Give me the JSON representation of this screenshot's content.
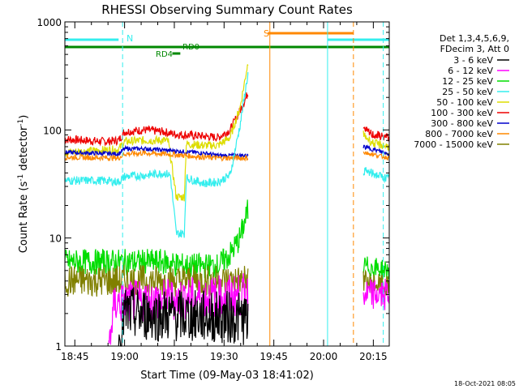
{
  "chart_data": {
    "type": "line",
    "title": "RHESSI Observing Summary Count Rates",
    "xlabel": "Start Time (09-May-03 18:41:02)",
    "ylabel_main": "Count Rate (s",
    "ylabel_sup1": "-1",
    "ylabel_mid": " detector",
    "ylabel_sup2": "-1",
    "ylabel_end": ")",
    "yscale": "log",
    "ylim": [
      1,
      1000
    ],
    "xlim_minutes": [
      18.7,
      20.33
    ],
    "x_ticks": [
      "18:45",
      "19:00",
      "19:15",
      "19:30",
      "19:45",
      "20:00",
      "20:15"
    ],
    "y_ticks": [
      "1",
      "10",
      "100",
      "1000"
    ],
    "legend": {
      "header1": "Det 1,3,4,5,6,9,",
      "header2": "FDecim 3, Att 0",
      "items": [
        {
          "label": "3 - 6 keV",
          "color": "#000000"
        },
        {
          "label": "6 - 12 keV",
          "color": "#ff00ff"
        },
        {
          "label": "12 - 25 keV",
          "color": "#00dd00"
        },
        {
          "label": "25 - 50 keV",
          "color": "#33eeee"
        },
        {
          "label": "50 - 100 keV",
          "color": "#dddd00"
        },
        {
          "label": "100 - 300 keV",
          "color": "#ee0000"
        },
        {
          "label": "300 - 800 keV",
          "color": "#0000cc"
        },
        {
          "label": "800 - 7000 keV",
          "color": "#ff8800"
        },
        {
          "label": "7000 - 15000 keV",
          "color": "#808000"
        }
      ]
    },
    "flags": {
      "N": "N",
      "S": "S",
      "RD0": "RD0",
      "RD4": "RD4"
    },
    "timestamp": "18-Oct-2021 08:05",
    "series": [
      {
        "name": "100 - 300 keV",
        "color": "#ee0000",
        "points": [
          [
            18.7,
            82
          ],
          [
            18.9,
            78
          ],
          [
            18.97,
            80
          ],
          [
            19.0,
            96
          ],
          [
            19.1,
            100
          ],
          [
            19.2,
            96
          ],
          [
            19.24,
            92
          ],
          [
            19.3,
            90
          ],
          [
            19.38,
            88
          ],
          [
            19.47,
            85
          ],
          [
            19.53,
            100
          ],
          [
            19.58,
            150
          ],
          [
            19.62,
            220
          ]
        ],
        "noise": 0.04
      },
      {
        "name": "50 - 100 keV",
        "color": "#dddd00",
        "points": [
          [
            18.7,
            62
          ],
          [
            18.9,
            65
          ],
          [
            18.97,
            66
          ],
          [
            19.0,
            78
          ],
          [
            19.1,
            80
          ],
          [
            19.2,
            80
          ],
          [
            19.22,
            78
          ],
          [
            19.26,
            24
          ],
          [
            19.3,
            24
          ],
          [
            19.31,
            74
          ],
          [
            19.4,
            72
          ],
          [
            19.47,
            72
          ],
          [
            19.53,
            85
          ],
          [
            19.58,
            160
          ],
          [
            19.62,
            420
          ]
        ],
        "noise": 0.04
      },
      {
        "name": "300 - 800 keV",
        "color": "#0000cc",
        "points": [
          [
            18.7,
            62
          ],
          [
            18.97,
            60
          ],
          [
            19.0,
            67
          ],
          [
            19.1,
            67
          ],
          [
            19.2,
            65
          ],
          [
            19.3,
            63
          ],
          [
            19.4,
            61
          ],
          [
            19.47,
            58
          ],
          [
            19.62,
            58
          ]
        ],
        "noise": 0.02
      },
      {
        "name": "800 - 7000 keV",
        "color": "#ff8800",
        "points": [
          [
            18.7,
            56
          ],
          [
            18.97,
            55
          ],
          [
            19.0,
            60
          ],
          [
            19.1,
            61
          ],
          [
            19.2,
            60
          ],
          [
            19.3,
            58
          ],
          [
            19.4,
            56
          ],
          [
            19.47,
            55
          ],
          [
            19.62,
            55
          ]
        ],
        "noise": 0.025
      },
      {
        "name": "25 - 50 keV",
        "color": "#33eeee",
        "points": [
          [
            18.7,
            34
          ],
          [
            18.9,
            34
          ],
          [
            18.97,
            33
          ],
          [
            19.0,
            37
          ],
          [
            19.1,
            38
          ],
          [
            19.2,
            40
          ],
          [
            19.23,
            38
          ],
          [
            19.26,
            11
          ],
          [
            19.3,
            11
          ],
          [
            19.31,
            36
          ],
          [
            19.4,
            32
          ],
          [
            19.47,
            33
          ],
          [
            19.53,
            38
          ],
          [
            19.58,
            110
          ],
          [
            19.62,
            330
          ]
        ],
        "noise": 0.04
      },
      {
        "name": "12 - 25 keV",
        "color": "#00dd00",
        "points": [
          [
            18.7,
            6
          ],
          [
            18.97,
            6
          ],
          [
            19.0,
            6
          ],
          [
            19.2,
            6
          ],
          [
            19.3,
            5.5
          ],
          [
            19.4,
            5.5
          ],
          [
            19.47,
            5.5
          ],
          [
            19.53,
            7
          ],
          [
            19.58,
            10
          ],
          [
            19.62,
            18
          ]
        ],
        "noise": 0.12
      },
      {
        "name": "7000 - 15000 keV",
        "color": "#808000",
        "points": [
          [
            18.7,
            4
          ],
          [
            19.62,
            4
          ]
        ],
        "noise": 0.15
      },
      {
        "name": "6 - 12 keV",
        "color": "#ff00ff",
        "points": [
          [
            18.92,
            1
          ],
          [
            18.95,
            2.5
          ],
          [
            19.62,
            3
          ]
        ],
        "noise": 0.2
      },
      {
        "name": "3 - 6 keV",
        "color": "#000000",
        "points": [
          [
            18.97,
            1
          ],
          [
            19.0,
            2
          ],
          [
            19.62,
            1.8
          ]
        ],
        "noise": 0.25
      },
      {
        "name": "50 - 100 keV (late)",
        "color": "#dddd00",
        "points": [
          [
            20.2,
            90
          ],
          [
            20.25,
            75
          ],
          [
            20.33,
            70
          ]
        ],
        "noise": 0.04
      },
      {
        "name": "100 - 300 keV (late)",
        "color": "#ee0000",
        "points": [
          [
            20.2,
            100
          ],
          [
            20.25,
            90
          ],
          [
            20.33,
            85
          ]
        ],
        "noise": 0.04
      },
      {
        "name": "300 - 800 keV (late)",
        "color": "#0000cc",
        "points": [
          [
            20.2,
            70
          ],
          [
            20.33,
            60
          ]
        ],
        "noise": 0.02
      },
      {
        "name": "800 - 7000 keV (late)",
        "color": "#ff8800",
        "points": [
          [
            20.2,
            62
          ],
          [
            20.33,
            55
          ]
        ],
        "noise": 0.02
      },
      {
        "name": "25 - 50 keV (late)",
        "color": "#33eeee",
        "points": [
          [
            20.2,
            42
          ],
          [
            20.33,
            35
          ]
        ],
        "noise": 0.04
      },
      {
        "name": "12 - 25 keV (late)",
        "color": "#00dd00",
        "points": [
          [
            20.2,
            5.5
          ],
          [
            20.33,
            5
          ]
        ],
        "noise": 0.1
      },
      {
        "name": "7000 - 15000 keV (late)",
        "color": "#808000",
        "points": [
          [
            20.2,
            4
          ],
          [
            20.33,
            3.5
          ]
        ],
        "noise": 0.1
      },
      {
        "name": "6 - 12 keV (late)",
        "color": "#ff00ff",
        "points": [
          [
            20.2,
            3
          ],
          [
            20.33,
            3
          ]
        ],
        "noise": 0.15
      }
    ],
    "flag_bars": [
      {
        "name": "N",
        "color": "#33eeee",
        "y_row": "upper",
        "segments": [
          [
            18.7,
            18.97
          ],
          [
            20.02,
            20.33
          ]
        ]
      },
      {
        "name": "S",
        "color": "#ff8800",
        "y_row": "top",
        "segments": [
          [
            19.72,
            20.15
          ]
        ]
      },
      {
        "name": "RD0",
        "color": "#008800",
        "y_row": "middle",
        "segments": [
          [
            18.7,
            20.33
          ]
        ]
      },
      {
        "name": "RD4",
        "color": "#008800",
        "y_row": "lower",
        "segments": [
          [
            19.24,
            19.28
          ]
        ]
      }
    ],
    "vlines": [
      {
        "t": 18.99,
        "color": "#33eeee",
        "style": "dashed"
      },
      {
        "t": 19.73,
        "color": "#ff8800",
        "style": "solid"
      },
      {
        "t": 20.02,
        "color": "#33eeee",
        "style": "solid"
      },
      {
        "t": 20.15,
        "color": "#ff8800",
        "style": "dashed"
      },
      {
        "t": 20.3,
        "color": "#33eeee",
        "style": "dashed"
      }
    ]
  }
}
